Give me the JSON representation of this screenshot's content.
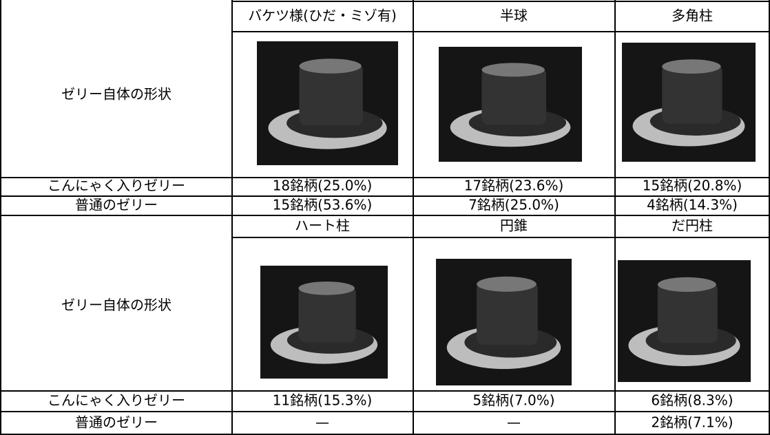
{
  "sections": [
    {
      "row_header": "ゼリー自体の形状",
      "columns": [
        "バケツ様(ひだ・ミゾ有)",
        "半球",
        "多角柱"
      ],
      "rows": [
        {
          "label": "こんにゃく入りゼリー",
          "cells": [
            "18銘柄(25.0%)",
            "17銘柄(23.6%)",
            "15銘柄(20.8%)"
          ]
        },
        {
          "label": "普通のゼリー",
          "cells": [
            "15銘柄(53.6%)",
            "7銘柄(25.0%)",
            "4銘柄(14.3%)"
          ]
        }
      ]
    },
    {
      "row_header": "ゼリー自体の形状",
      "columns": [
        "ハート柱",
        "円錐",
        "だ円柱"
      ],
      "rows": [
        {
          "label": "こんにゃく入りゼリー",
          "cells": [
            "11銘柄(15.3%)",
            "5銘柄(7.0%)",
            "6銘柄(8.3%)"
          ]
        },
        {
          "label": "普通のゼリー",
          "cells": [
            "—",
            "—",
            "2銘柄(7.1%)"
          ]
        }
      ]
    }
  ]
}
